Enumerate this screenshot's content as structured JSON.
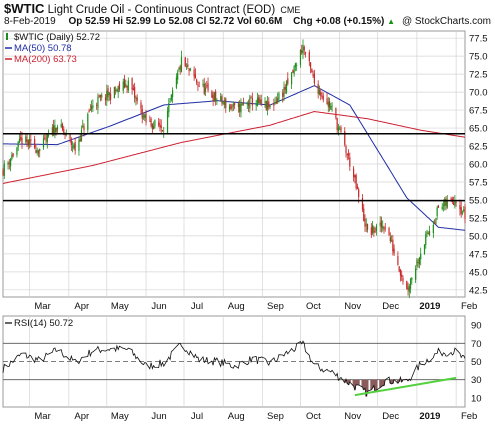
{
  "header": {
    "symbol": "$WTIC",
    "name": "Light Crude Oil - Continuous Contract (EOD)",
    "exchange": "CME",
    "date": "8-Feb-2019",
    "open": "Op 52.59",
    "high": "Hi 52.99",
    "low": "Lo 52.08",
    "close": "Cl 52.72",
    "volume": "Vol 60.6M",
    "change": "Chg +0.08 (+0.15%)",
    "change_arrow": "▲",
    "watermark": "@ StockCharts.com"
  },
  "chart_data": [
    {
      "type": "candlestick",
      "legend": [
        {
          "label": "$WTIC (Daily) 52.72",
          "color": "#000000",
          "marker": "candle"
        },
        {
          "label": "MA(50) 50.78",
          "color": "#1f2ea6",
          "marker": "line"
        },
        {
          "label": "MA(200) 63.73",
          "color": "#cc1f2f",
          "marker": "line"
        }
      ],
      "x_ticks": [
        "Mar",
        "Apr",
        "May",
        "Jun",
        "Jul",
        "Aug",
        "Sep",
        "Oct",
        "Nov",
        "Dec",
        "2019",
        "Feb"
      ],
      "x_range": [
        "2018-02-08",
        "2019-02-08"
      ],
      "y_ticks": [
        42.5,
        45.0,
        47.5,
        50.0,
        52.5,
        55.0,
        57.5,
        60.0,
        62.5,
        65.0,
        67.5,
        70.0,
        72.5,
        75.0,
        77.5
      ],
      "ylim": [
        41.5,
        78.5
      ],
      "horizontal_lines": [
        64.2,
        54.9
      ],
      "series": [
        {
          "name": "Close",
          "x": [
            "2018-02-08",
            "2018-02-23",
            "2018-03-09",
            "2018-03-23",
            "2018-04-06",
            "2018-04-20",
            "2018-05-04",
            "2018-05-18",
            "2018-06-01",
            "2018-06-15",
            "2018-06-29",
            "2018-07-13",
            "2018-07-27",
            "2018-08-10",
            "2018-08-24",
            "2018-09-07",
            "2018-09-21",
            "2018-10-03",
            "2018-10-12",
            "2018-10-26",
            "2018-11-09",
            "2018-11-23",
            "2018-12-07",
            "2018-12-24",
            "2019-01-04",
            "2019-01-18",
            "2019-02-01",
            "2019-02-08"
          ],
          "values": [
            59.2,
            63.3,
            62.0,
            65.5,
            62.1,
            68.4,
            69.7,
            71.3,
            65.8,
            65.1,
            74.2,
            71.0,
            69.0,
            67.6,
            68.7,
            67.8,
            71.0,
            76.4,
            71.3,
            67.6,
            60.2,
            50.4,
            51.5,
            42.5,
            47.9,
            53.8,
            55.3,
            52.7
          ]
        },
        {
          "name": "MA(50)",
          "x": [
            "2018-02-08",
            "2018-03-23",
            "2018-05-04",
            "2018-06-15",
            "2018-07-27",
            "2018-09-07",
            "2018-10-12",
            "2018-11-09",
            "2018-12-07",
            "2018-12-24",
            "2019-01-18",
            "2019-02-08"
          ],
          "values": [
            62.8,
            62.7,
            65.3,
            68.2,
            68.8,
            68.2,
            70.9,
            68.2,
            60.2,
            55.3,
            51.2,
            50.78
          ]
        },
        {
          "name": "MA(200)",
          "x": [
            "2018-02-08",
            "2018-04-20",
            "2018-06-29",
            "2018-09-07",
            "2018-10-12",
            "2018-11-23",
            "2019-01-04",
            "2019-02-08"
          ],
          "values": [
            57.3,
            59.8,
            63.0,
            65.4,
            67.3,
            66.3,
            64.7,
            63.73
          ]
        }
      ]
    },
    {
      "type": "line",
      "legend": [
        {
          "label": "RSI(14) 50.72",
          "color": "#000000",
          "marker": "line"
        }
      ],
      "x_ticks": [
        "Mar",
        "Apr",
        "May",
        "Jun",
        "Jul",
        "Aug",
        "Sep",
        "Oct",
        "Nov",
        "Dec",
        "2019",
        "Feb"
      ],
      "y_ticks": [
        10,
        30,
        50,
        70,
        90
      ],
      "ylim": [
        0,
        100
      ],
      "reference_lines": [
        70,
        50,
        30
      ],
      "series": [
        {
          "name": "RSI(14)",
          "x": [
            "2018-02-08",
            "2018-02-23",
            "2018-03-09",
            "2018-03-23",
            "2018-04-06",
            "2018-04-20",
            "2018-05-04",
            "2018-05-18",
            "2018-06-01",
            "2018-06-15",
            "2018-06-29",
            "2018-07-13",
            "2018-07-27",
            "2018-08-10",
            "2018-08-24",
            "2018-09-07",
            "2018-09-21",
            "2018-10-03",
            "2018-10-12",
            "2018-10-26",
            "2018-11-09",
            "2018-11-23",
            "2018-12-07",
            "2018-12-24",
            "2019-01-04",
            "2019-01-18",
            "2019-02-01",
            "2019-02-08"
          ],
          "values": [
            42,
            58,
            51,
            63,
            49,
            62,
            64,
            63,
            45,
            48,
            69,
            52,
            50,
            45,
            53,
            48,
            60,
            69,
            45,
            38,
            26,
            15,
            29,
            28,
            47,
            60,
            61,
            50.72
          ]
        },
        {
          "name": "trendline",
          "x": [
            "2018-11-13",
            "2019-02-01"
          ],
          "values": [
            13,
            32
          ]
        }
      ]
    }
  ],
  "colors": {
    "up": "#1a8f1a",
    "down": "#c62828",
    "ma50": "#1f2ea6",
    "ma200": "#cc1f2f",
    "rsi_fill": "#8b5a5a",
    "trendline": "#52d13c",
    "grid": "#d4d4d4"
  }
}
